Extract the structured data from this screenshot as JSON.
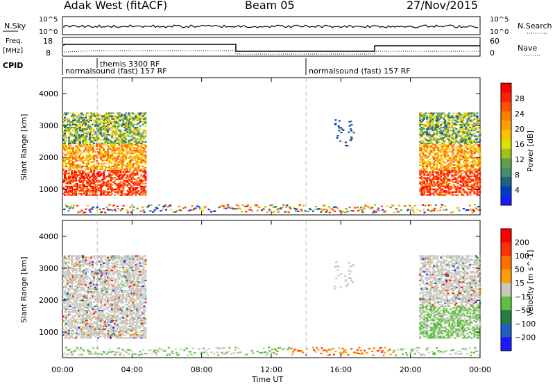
{
  "header": {
    "station": "Adak West (fitACF)",
    "beam": "Beam 05",
    "date": "27/Nov/2015"
  },
  "top_panels": {
    "nsky_label": "N.Sky",
    "nsearch_label": "N.Search",
    "nsky_ticks": [
      "10^5",
      "10^0"
    ],
    "nsearch_ticks": [
      "10^5",
      "10^0"
    ],
    "freq_label": "Freq.",
    "freq_unit": "[MHz]",
    "freq_ticks": [
      "18",
      "8"
    ],
    "nave_label": "Nave",
    "nave_ticks": [
      "60",
      "0"
    ],
    "cpid_label": "CPID",
    "cpid_segments": [
      {
        "text": "normalsound (fast) 157 RF",
        "start_hour": 0
      },
      {
        "text": "themis 3300 RF",
        "start_hour": 2
      },
      {
        "text": "normalsound (fast) 157 RF",
        "start_hour": 14
      }
    ]
  },
  "chart_data": [
    {
      "type": "heatmap",
      "title": "",
      "xlabel": "Time UT",
      "ylabel": "Slant Range [km]",
      "xlim": [
        0,
        24
      ],
      "ylim": [
        200,
        4500
      ],
      "x_ticks": [
        "00:00",
        "04:00",
        "08:00",
        "12:00",
        "16:00",
        "20:00",
        "00:00"
      ],
      "y_ticks": [
        1000,
        2000,
        3000,
        4000
      ],
      "colorbar": {
        "label": "Power [dB]",
        "ticks": [
          "28",
          "24",
          "20",
          "16",
          "12",
          "8",
          "4"
        ],
        "colors": [
          "#1a1aff",
          "#0040c0",
          "#206080",
          "#409070",
          "#60a040",
          "#a0c020",
          "#e0e000",
          "#ffc000",
          "#ffa000",
          "#ff8000",
          "#ff5000",
          "#ff2000",
          "#ff0000"
        ]
      },
      "description_regions": [
        {
          "t_start": 0,
          "t_end": 4.8,
          "r_start": 900,
          "r_end": 3400,
          "level": "high"
        },
        {
          "t_start": 20.5,
          "t_end": 24,
          "r_start": 900,
          "r_end": 3400,
          "level": "high"
        },
        {
          "t_start": 0,
          "t_end": 24,
          "r_start": 200,
          "r_end": 500,
          "level": "low"
        }
      ]
    },
    {
      "type": "heatmap",
      "title": "",
      "xlabel": "Time UT",
      "ylabel": "Slant Range [km]",
      "xlim": [
        0,
        24
      ],
      "ylim": [
        200,
        4500
      ],
      "x_ticks": [
        "00:00",
        "04:00",
        "08:00",
        "12:00",
        "16:00",
        "20:00",
        "00:00"
      ],
      "y_ticks": [
        1000,
        2000,
        3000,
        4000
      ],
      "colorbar": {
        "label": "Velocity [m s^-1]",
        "ticks": [
          "200",
          "100",
          "50",
          "15",
          "−15",
          "−50",
          "−100",
          "−200"
        ],
        "colors": [
          "#1a1aff",
          "#2060c0",
          "#208040",
          "#60c040",
          "#c8c8c0",
          "#ffa000",
          "#ff7000",
          "#ff3000",
          "#ff0000"
        ]
      }
    }
  ]
}
